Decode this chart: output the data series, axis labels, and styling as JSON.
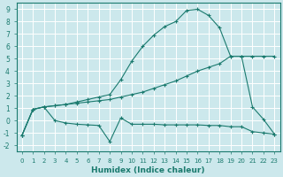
{
  "xlabel": "Humidex (Indice chaleur)",
  "bg_color": "#cce8ec",
  "grid_color": "#ffffff",
  "line_color": "#1a7a6e",
  "xlim": [
    -0.5,
    23.5
  ],
  "ylim": [
    -2.5,
    9.5
  ],
  "xticks": [
    0,
    1,
    2,
    3,
    4,
    5,
    6,
    7,
    8,
    9,
    10,
    11,
    12,
    13,
    14,
    15,
    16,
    17,
    18,
    19,
    20,
    21,
    22,
    23
  ],
  "yticks": [
    -2,
    -1,
    0,
    1,
    2,
    3,
    4,
    5,
    6,
    7,
    8,
    9
  ],
  "line1_x": [
    0,
    1,
    2,
    3,
    4,
    5,
    6,
    7,
    8,
    9,
    10,
    11,
    12,
    13,
    14,
    15,
    16,
    17,
    18,
    19,
    20,
    21,
    22,
    23
  ],
  "line1_y": [
    -1.2,
    0.9,
    1.1,
    0.0,
    -0.2,
    -0.3,
    -0.35,
    -0.4,
    -1.7,
    0.2,
    -0.3,
    -0.3,
    -0.3,
    -0.35,
    -0.35,
    -0.35,
    -0.35,
    -0.4,
    -0.4,
    -0.5,
    -0.5,
    -0.9,
    -1.0,
    -1.1
  ],
  "line2_x": [
    0,
    1,
    2,
    3,
    4,
    5,
    6,
    7,
    8,
    9,
    10,
    11,
    12,
    13,
    14,
    15,
    16,
    17,
    18,
    19,
    20,
    21,
    22,
    23
  ],
  "line2_y": [
    -1.2,
    0.9,
    1.1,
    1.2,
    1.3,
    1.4,
    1.5,
    1.6,
    1.7,
    1.9,
    2.1,
    2.3,
    2.6,
    2.9,
    3.2,
    3.6,
    4.0,
    4.3,
    4.6,
    5.2,
    5.2,
    5.2,
    5.2,
    5.2
  ],
  "line3_x": [
    0,
    1,
    2,
    3,
    4,
    5,
    6,
    7,
    8,
    9,
    10,
    11,
    12,
    13,
    14,
    15,
    16,
    17,
    18,
    19,
    20,
    21,
    22,
    23
  ],
  "line3_y": [
    -1.2,
    0.9,
    1.1,
    1.2,
    1.3,
    1.5,
    1.7,
    1.9,
    2.1,
    3.3,
    4.8,
    6.0,
    6.9,
    7.6,
    8.0,
    8.9,
    9.0,
    8.5,
    7.5,
    5.2,
    5.2,
    1.1,
    0.1,
    -1.1
  ]
}
